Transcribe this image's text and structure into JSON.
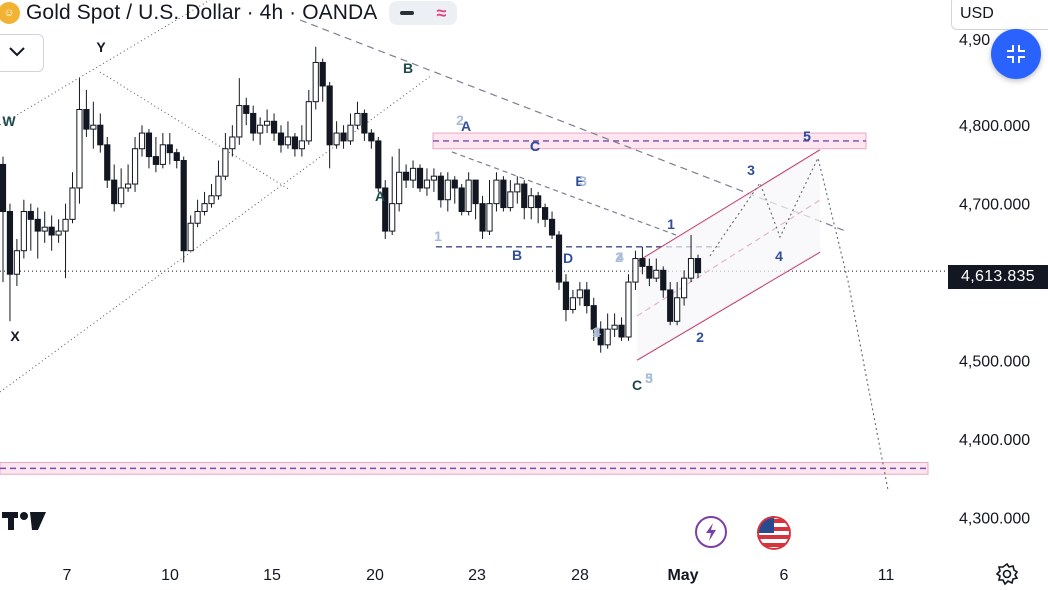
{
  "header": {
    "symbol_title": "Gold Spot / U.S. Dollar · 4h · OANDA",
    "symbol_icon": "gold-coin-icon",
    "currency": "USD"
  },
  "colors": {
    "up_candle": "#ffffff",
    "down_candle": "#131722",
    "channel": "#b5225a",
    "zone_fill": "#fde6ef",
    "dashed_line": "#6a6f80",
    "fab_blue": "#2962ff",
    "wave_blue": "#2f4f9e",
    "wave_teal": "#1e4a4f",
    "wave_light": "#a9bcd8"
  },
  "chart_data": {
    "type": "candlestick",
    "title": "Gold Spot / U.S. Dollar · 4h · OANDA",
    "xlabel": "",
    "ylabel": "",
    "ylim": [
      4275,
      4915
    ],
    "x_ticks": [
      "7",
      "10",
      "15",
      "20",
      "23",
      "28",
      "May",
      "6",
      "11"
    ],
    "y_ticks": [
      "4,300.000",
      "4,400.000",
      "4,500.000",
      "4,700.000",
      "4,800.000",
      "4,90"
    ],
    "last_price": "4,613.835",
    "last_price_value": 4613.835,
    "grid": false,
    "candles": [
      {
        "o": 4750,
        "c": 4690,
        "h": 4760,
        "l": 4600
      },
      {
        "o": 4690,
        "c": 4610,
        "h": 4700,
        "l": 4550
      },
      {
        "o": 4610,
        "c": 4640,
        "h": 4655,
        "l": 4595
      },
      {
        "o": 4640,
        "c": 4690,
        "h": 4705,
        "l": 4630
      },
      {
        "o": 4690,
        "c": 4680,
        "h": 4700,
        "l": 4640
      },
      {
        "o": 4680,
        "c": 4665,
        "h": 4695,
        "l": 4630
      },
      {
        "o": 4665,
        "c": 4670,
        "h": 4690,
        "l": 4650
      },
      {
        "o": 4670,
        "c": 4660,
        "h": 4685,
        "l": 4640
      },
      {
        "o": 4660,
        "c": 4665,
        "h": 4680,
        "l": 4650
      },
      {
        "o": 4665,
        "c": 4680,
        "h": 4700,
        "l": 4605
      },
      {
        "o": 4680,
        "c": 4720,
        "h": 4740,
        "l": 4675
      },
      {
        "o": 4720,
        "c": 4820,
        "h": 4860,
        "l": 4700
      },
      {
        "o": 4820,
        "c": 4795,
        "h": 4845,
        "l": 4785
      },
      {
        "o": 4795,
        "c": 4800,
        "h": 4830,
        "l": 4770
      },
      {
        "o": 4800,
        "c": 4775,
        "h": 4815,
        "l": 4765
      },
      {
        "o": 4775,
        "c": 4730,
        "h": 4785,
        "l": 4720
      },
      {
        "o": 4730,
        "c": 4700,
        "h": 4750,
        "l": 4690
      },
      {
        "o": 4700,
        "c": 4720,
        "h": 4745,
        "l": 4695
      },
      {
        "o": 4720,
        "c": 4725,
        "h": 4750,
        "l": 4715
      },
      {
        "o": 4725,
        "c": 4770,
        "h": 4785,
        "l": 4715
      },
      {
        "o": 4770,
        "c": 4790,
        "h": 4800,
        "l": 4760
      },
      {
        "o": 4790,
        "c": 4760,
        "h": 4795,
        "l": 4745
      },
      {
        "o": 4760,
        "c": 4750,
        "h": 4785,
        "l": 4740
      },
      {
        "o": 4750,
        "c": 4775,
        "h": 4790,
        "l": 4745
      },
      {
        "o": 4775,
        "c": 4765,
        "h": 4790,
        "l": 4750
      },
      {
        "o": 4765,
        "c": 4755,
        "h": 4770,
        "l": 4745
      },
      {
        "o": 4755,
        "c": 4640,
        "h": 4760,
        "l": 4625
      },
      {
        "o": 4640,
        "c": 4675,
        "h": 4685,
        "l": 4640
      },
      {
        "o": 4675,
        "c": 4690,
        "h": 4705,
        "l": 4670
      },
      {
        "o": 4690,
        "c": 4700,
        "h": 4715,
        "l": 4685
      },
      {
        "o": 4700,
        "c": 4710,
        "h": 4725,
        "l": 4695
      },
      {
        "o": 4710,
        "c": 4735,
        "h": 4755,
        "l": 4705
      },
      {
        "o": 4735,
        "c": 4770,
        "h": 4790,
        "l": 4730
      },
      {
        "o": 4770,
        "c": 4785,
        "h": 4800,
        "l": 4760
      },
      {
        "o": 4785,
        "c": 4825,
        "h": 4860,
        "l": 4775
      },
      {
        "o": 4825,
        "c": 4815,
        "h": 4835,
        "l": 4800
      },
      {
        "o": 4815,
        "c": 4790,
        "h": 4825,
        "l": 4780
      },
      {
        "o": 4790,
        "c": 4800,
        "h": 4810,
        "l": 4775
      },
      {
        "o": 4800,
        "c": 4805,
        "h": 4820,
        "l": 4790
      },
      {
        "o": 4805,
        "c": 4790,
        "h": 4815,
        "l": 4780
      },
      {
        "o": 4790,
        "c": 4775,
        "h": 4800,
        "l": 4765
      },
      {
        "o": 4775,
        "c": 4785,
        "h": 4805,
        "l": 4770
      },
      {
        "o": 4785,
        "c": 4770,
        "h": 4790,
        "l": 4760
      },
      {
        "o": 4770,
        "c": 4780,
        "h": 4800,
        "l": 4760
      },
      {
        "o": 4780,
        "c": 4830,
        "h": 4845,
        "l": 4775
      },
      {
        "o": 4830,
        "c": 4880,
        "h": 4900,
        "l": 4820
      },
      {
        "o": 4880,
        "c": 4850,
        "h": 4885,
        "l": 4830
      },
      {
        "o": 4850,
        "c": 4775,
        "h": 4855,
        "l": 4745
      },
      {
        "o": 4775,
        "c": 4790,
        "h": 4805,
        "l": 4770
      },
      {
        "o": 4790,
        "c": 4780,
        "h": 4800,
        "l": 4770
      },
      {
        "o": 4780,
        "c": 4800,
        "h": 4815,
        "l": 4775
      },
      {
        "o": 4800,
        "c": 4815,
        "h": 4830,
        "l": 4795
      },
      {
        "o": 4815,
        "c": 4790,
        "h": 4820,
        "l": 4780
      },
      {
        "o": 4790,
        "c": 4780,
        "h": 4795,
        "l": 4770
      },
      {
        "o": 4780,
        "c": 4720,
        "h": 4785,
        "l": 4715
      },
      {
        "o": 4720,
        "c": 4665,
        "h": 4730,
        "l": 4655
      },
      {
        "o": 4665,
        "c": 4700,
        "h": 4760,
        "l": 4660
      },
      {
        "o": 4700,
        "c": 4740,
        "h": 4770,
        "l": 4690
      },
      {
        "o": 4740,
        "c": 4730,
        "h": 4750,
        "l": 4720
      },
      {
        "o": 4730,
        "c": 4745,
        "h": 4755,
        "l": 4720
      },
      {
        "o": 4745,
        "c": 4720,
        "h": 4750,
        "l": 4715
      },
      {
        "o": 4720,
        "c": 4730,
        "h": 4745,
        "l": 4710
      },
      {
        "o": 4730,
        "c": 4735,
        "h": 4745,
        "l": 4715
      },
      {
        "o": 4735,
        "c": 4705,
        "h": 4740,
        "l": 4695
      },
      {
        "o": 4705,
        "c": 4730,
        "h": 4740,
        "l": 4690
      },
      {
        "o": 4730,
        "c": 4720,
        "h": 4735,
        "l": 4700
      },
      {
        "o": 4720,
        "c": 4690,
        "h": 4725,
        "l": 4685
      },
      {
        "o": 4690,
        "c": 4730,
        "h": 4740,
        "l": 4685
      },
      {
        "o": 4730,
        "c": 4700,
        "h": 4730,
        "l": 4680
      },
      {
        "o": 4700,
        "c": 4665,
        "h": 4710,
        "l": 4655
      },
      {
        "o": 4665,
        "c": 4700,
        "h": 4730,
        "l": 4660
      },
      {
        "o": 4700,
        "c": 4730,
        "h": 4740,
        "l": 4690
      },
      {
        "o": 4730,
        "c": 4695,
        "h": 4735,
        "l": 4690
      },
      {
        "o": 4695,
        "c": 4715,
        "h": 4730,
        "l": 4690
      },
      {
        "o": 4715,
        "c": 4725,
        "h": 4735,
        "l": 4700
      },
      {
        "o": 4725,
        "c": 4695,
        "h": 4730,
        "l": 4680
      },
      {
        "o": 4695,
        "c": 4710,
        "h": 4720,
        "l": 4680
      },
      {
        "o": 4710,
        "c": 4695,
        "h": 4715,
        "l": 4675
      },
      {
        "o": 4695,
        "c": 4680,
        "h": 4700,
        "l": 4670
      },
      {
        "o": 4680,
        "c": 4660,
        "h": 4690,
        "l": 4655
      },
      {
        "o": 4660,
        "c": 4600,
        "h": 4665,
        "l": 4590
      },
      {
        "o": 4600,
        "c": 4565,
        "h": 4610,
        "l": 4550
      },
      {
        "o": 4565,
        "c": 4580,
        "h": 4590,
        "l": 4560
      },
      {
        "o": 4580,
        "c": 4590,
        "h": 4600,
        "l": 4570
      },
      {
        "o": 4590,
        "c": 4570,
        "h": 4600,
        "l": 4560
      },
      {
        "o": 4570,
        "c": 4540,
        "h": 4580,
        "l": 4525
      },
      {
        "o": 4540,
        "c": 4520,
        "h": 4550,
        "l": 4510
      },
      {
        "o": 4520,
        "c": 4540,
        "h": 4560,
        "l": 4515
      },
      {
        "o": 4540,
        "c": 4545,
        "h": 4560,
        "l": 4530
      },
      {
        "o": 4545,
        "c": 4530,
        "h": 4555,
        "l": 4525
      },
      {
        "o": 4530,
        "c": 4600,
        "h": 4610,
        "l": 4525
      },
      {
        "o": 4600,
        "c": 4630,
        "h": 4640,
        "l": 4590
      },
      {
        "o": 4630,
        "c": 4620,
        "h": 4645,
        "l": 4610
      },
      {
        "o": 4620,
        "c": 4605,
        "h": 4630,
        "l": 4595
      },
      {
        "o": 4605,
        "c": 4615,
        "h": 4630,
        "l": 4600
      },
      {
        "o": 4615,
        "c": 4590,
        "h": 4620,
        "l": 4580
      },
      {
        "o": 4590,
        "c": 4550,
        "h": 4600,
        "l": 4545
      },
      {
        "o": 4550,
        "c": 4580,
        "h": 4600,
        "l": 4545
      },
      {
        "o": 4580,
        "c": 4605,
        "h": 4615,
        "l": 4570
      },
      {
        "o": 4605,
        "c": 4630,
        "h": 4660,
        "l": 4600
      },
      {
        "o": 4630,
        "c": 4612,
        "h": 4635,
        "l": 4605
      }
    ],
    "levels": [
      {
        "kind": "zone",
        "from": 4770,
        "to": 4790
      },
      {
        "kind": "zone",
        "from": 4355,
        "to": 4370
      },
      {
        "kind": "dashed",
        "value": 4645
      },
      {
        "kind": "dotted",
        "value": 4614
      }
    ],
    "annotations": [
      "W",
      "X",
      "Y",
      "A",
      "B",
      "C",
      "D",
      "E",
      "1",
      "2",
      "3",
      "4",
      "5",
      "C",
      "5",
      "A",
      "B",
      "C",
      "2",
      "1",
      "3",
      "4",
      "1",
      "2",
      "3",
      "4",
      "5"
    ]
  }
}
